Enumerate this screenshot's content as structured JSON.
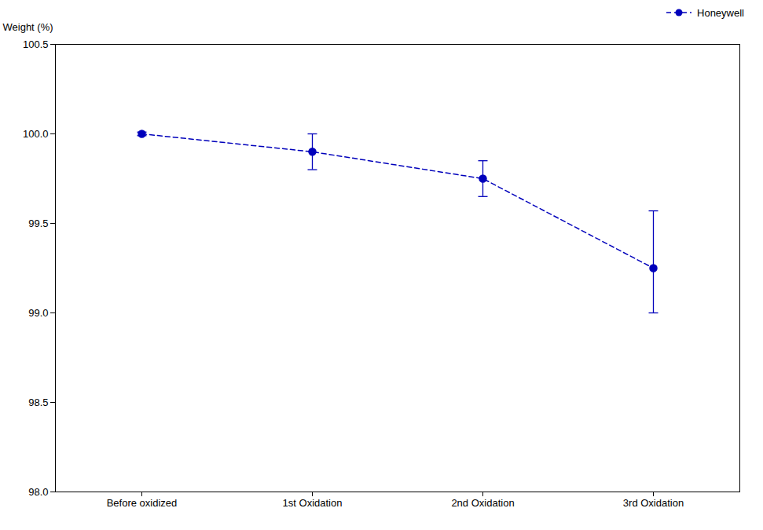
{
  "chart_data": {
    "type": "line",
    "categories": [
      "Before oxidized",
      "1st Oxidation",
      "2nd Oxidation",
      "3rd Oxidation"
    ],
    "series": [
      {
        "name": "Honeywell",
        "color": "#0000BB",
        "values": [
          100.0,
          99.9,
          99.75,
          99.25
        ],
        "error_upper": [
          0.01,
          0.1,
          0.1,
          0.32
        ],
        "error_lower": [
          0.01,
          0.1,
          0.1,
          0.25
        ],
        "marker": "circle",
        "line_style": "dashed"
      }
    ],
    "ylabel": "Weight (%)",
    "ylim": [
      98.0,
      100.5
    ],
    "yticks": [
      {
        "value": 98.0,
        "label": "98.0"
      },
      98.5,
      {
        "value": 99.0,
        "label": "99.0"
      },
      99.5,
      {
        "value": 100.0,
        "label": "100.0"
      },
      100.5
    ],
    "grid": false,
    "legend": "upper right"
  }
}
